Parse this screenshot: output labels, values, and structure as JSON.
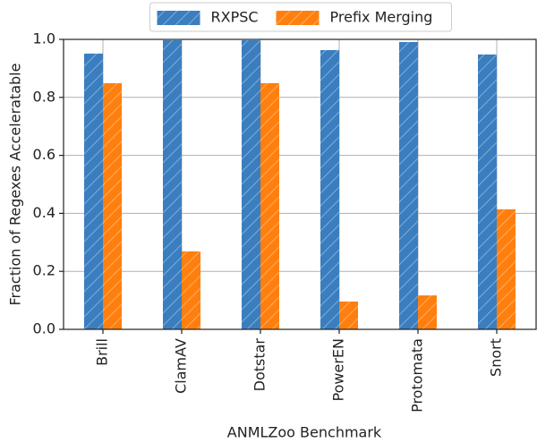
{
  "chart_data": {
    "type": "bar",
    "x_label": "ANMLZoo Benchmark",
    "y_label": "Fraction of Regexes Acceleratable",
    "categories": [
      "Brill",
      "ClamAV",
      "Dotstar",
      "PowerEN",
      "Protomata",
      "Snort"
    ],
    "series": [
      {
        "name": "RXPSC",
        "color": "#3a7ebf",
        "values": [
          0.951,
          0.997,
          0.997,
          0.963,
          0.991,
          0.948
        ]
      },
      {
        "name": "Prefix Merging",
        "color": "#ff7f0e",
        "values": [
          0.849,
          0.269,
          0.849,
          0.096,
          0.117,
          0.414
        ]
      }
    ],
    "ylim": [
      0,
      1.0
    ],
    "yticks": [
      {
        "value": 0,
        "label": "0.0"
      },
      0.2,
      0.4,
      0.6,
      0.8,
      {
        "value": 1.0,
        "label": "1.0"
      }
    ],
    "grid": true,
    "legend_position": "upper center"
  }
}
